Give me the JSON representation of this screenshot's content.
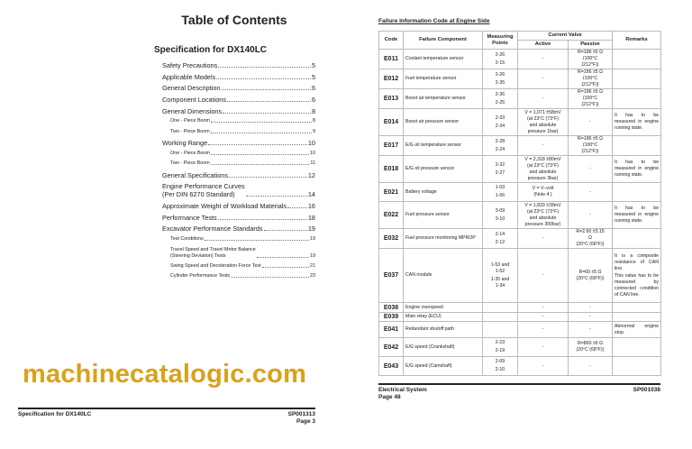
{
  "left_page": {
    "title": "Table of Contents",
    "section": "Specification for DX140LC",
    "entries": [
      {
        "label": "Safety Precautions",
        "page": "5",
        "level": 1
      },
      {
        "label": "Applicable Models",
        "page": "5",
        "level": 1
      },
      {
        "label": "General Description",
        "page": "6",
        "level": 1
      },
      {
        "label": "Component Locations",
        "page": "6",
        "level": 1
      },
      {
        "label": "General Dimensions",
        "page": "8",
        "level": 1
      },
      {
        "label": "One - Piece Boom",
        "page": "8",
        "level": 2
      },
      {
        "label": "Two - Piece Boom",
        "page": "9",
        "level": 2
      },
      {
        "label": "Working Range",
        "page": "10",
        "level": 1
      },
      {
        "label": "One - Piece Boom",
        "page": "10",
        "level": 2
      },
      {
        "label": "Two - Piece Boom",
        "page": "11",
        "level": 2
      },
      {
        "label": "General Specifications",
        "page": "12",
        "level": 1
      },
      {
        "label": "Engine Performance Curves\n(Per DIN 6270 Standard)",
        "page": "14",
        "level": 1
      },
      {
        "label": "Approximate Weight of Workload Materials",
        "page": "16",
        "level": 1
      },
      {
        "label": "Performance Tests",
        "page": "18",
        "level": 1
      },
      {
        "label": "Excavator Performance Standards",
        "page": "19",
        "level": 1
      },
      {
        "label": "Test Conditions",
        "page": "19",
        "level": 2
      },
      {
        "label": "Travel Speed and Travel Motor Balance\n (Steering Deviation) Tests",
        "page": "19",
        "level": 2
      },
      {
        "label": "Swing Speed and Deceleration Force Test",
        "page": "21",
        "level": 2
      },
      {
        "label": "Cylinder Performance Tests",
        "page": "23",
        "level": 2
      }
    ],
    "footer": {
      "left": "Specification for DX140LC",
      "doc_id": "SP001313",
      "page": "Page 3"
    }
  },
  "right_page": {
    "title": "Failure Information Code at Engine Side",
    "headers": {
      "code": "Code",
      "component": "Failure Component",
      "measuring": "Measuring Points",
      "current": "Current Valve",
      "active": "Active",
      "passive": "Passive",
      "remarks": "Remarks"
    },
    "rows": [
      {
        "code": "E011",
        "component": "Coolant temperature sensor",
        "points": [
          "2-26",
          "2-15"
        ],
        "active": "-",
        "passive": "R=186 ±5 Ω\n(100°C\n(212°F))",
        "remarks": ""
      },
      {
        "code": "E012",
        "component": "Fuel temperature sensor",
        "points": [
          "2-26",
          "2-35"
        ],
        "active": "-",
        "passive": "R=186 ±5 Ω\n(100°C\n(212°F))",
        "remarks": ""
      },
      {
        "code": "E013",
        "component": "Boost air temperature sensor",
        "points": [
          "2-36",
          "2-25"
        ],
        "active": "-",
        "passive": "R=186 ±5 Ω\n(100°C\n(212°F))",
        "remarks": ""
      },
      {
        "code": "E014",
        "component": "Boost air pressure sensor",
        "points": [
          "2-33",
          "2-34"
        ],
        "active": "V = 1,071 ±58mV\n(at 23°C (73°F)\nand absolute\npressure 1bar)",
        "passive": "-",
        "remarks": "It has to be measured in engine running state."
      },
      {
        "code": "E017",
        "component": "E/G oil temperature sensor",
        "points": [
          "2-28",
          "2-24"
        ],
        "active": "-",
        "passive": "R=186 ±5 Ω\n(100°C\n(212°F))",
        "remarks": ""
      },
      {
        "code": "E018",
        "component": "E/G oil pressure sensor",
        "points": [
          "2-32",
          "2-27"
        ],
        "active": "V = 2,318 ±80mV\n(at 23°C (73°F)\nand absolute\npressure 3bar)",
        "passive": "-",
        "remarks": "It has to be measured in engine running state."
      },
      {
        "code": "E021",
        "component": "Battery voltage",
        "points": [
          "1-03",
          "1-06"
        ],
        "active": "V = V–volt\n(Note 4.)",
        "passive": "-",
        "remarks": ""
      },
      {
        "code": "E022",
        "component": "Fuel pressure sensor",
        "points": [
          "3-09",
          "3-10"
        ],
        "active": "V = 1,833 ±28mV\n(at 23°C (73°F)\nand absolute\npressure 300bar)",
        "passive": "-",
        "remarks": "It has to be measured in engine running state."
      },
      {
        "code": "E032",
        "component": "Fuel pressure monitoring MPROP",
        "points": [
          "2-14",
          "2-12"
        ],
        "active": "-",
        "passive": "R=2.60 ±3.15\nΩ\n(20°C (68°F))",
        "remarks": ""
      },
      {
        "code": "E037",
        "component": "CAN module",
        "points": [
          "1-53 and\n1-52",
          "1-35 and\n1-34"
        ],
        "active": "-",
        "passive": "R=60 ±5 Ω\n(20°C (68°F))",
        "remarks": "It is a composite resistance of CAN line.\nThis value has to be measured by connected condition of CAN line."
      },
      {
        "code": "E038",
        "component": "Engine overspeed",
        "points": [],
        "active": "-",
        "passive": "-",
        "remarks": ""
      },
      {
        "code": "E039",
        "component": "Main relay (ECU)",
        "points": [],
        "active": "-",
        "passive": "-",
        "remarks": ""
      },
      {
        "code": "E041",
        "component": "Redundant shutoff path",
        "points": [],
        "active": "-",
        "passive": "-",
        "remarks": "Abnormal engine stop."
      },
      {
        "code": "E042",
        "component": "E/G speed (Crankshaft)",
        "points": [
          "2-23",
          "2-19"
        ],
        "active": "-",
        "passive": "R=860 ±6 Ω\n(20°C (68°F))",
        "remarks": ""
      },
      {
        "code": "E043",
        "component": "E/G speed (Camshaft)",
        "points": [
          "2-09",
          "2-10"
        ],
        "active": "-",
        "passive": "-",
        "remarks": ""
      }
    ],
    "footer": {
      "left": "Electrical System",
      "page": "Page 48",
      "doc_id": "SP001038"
    }
  },
  "watermark": "machinecatalogic.com",
  "colors": {
    "watermark": "#d9a21a",
    "text": "#222222"
  }
}
